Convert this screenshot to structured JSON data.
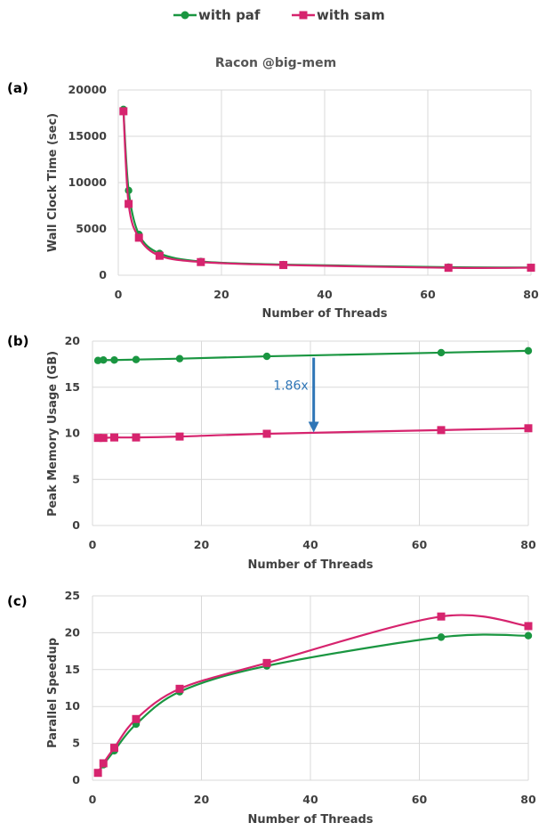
{
  "title": "Racon @big-mem",
  "legend": [
    {
      "label": "with paf",
      "color": "#1a9641",
      "marker": "circle"
    },
    {
      "label": "with sam",
      "color": "#d6246e",
      "marker": "square"
    }
  ],
  "chart_data": [
    {
      "panel": "(a)",
      "type": "line",
      "title": "Racon @big-mem",
      "xlabel": "Number of Threads",
      "ylabel": "Wall Clock Time (sec)",
      "xlim": [
        0,
        80
      ],
      "ylim": [
        0,
        20000
      ],
      "xticks": [
        0,
        20,
        40,
        60,
        80
      ],
      "yticks": [
        0,
        5000,
        10000,
        15000,
        20000
      ],
      "grid": true,
      "legend_position": "top",
      "x": [
        1,
        2,
        4,
        8,
        16,
        32,
        64,
        80
      ],
      "series": [
        {
          "name": "with paf",
          "values": [
            17900,
            9150,
            4400,
            2350,
            1480,
            1150,
            870,
            830
          ]
        },
        {
          "name": "with sam",
          "values": [
            17700,
            7700,
            4050,
            2100,
            1420,
            1100,
            800,
            810
          ]
        }
      ]
    },
    {
      "panel": "(b)",
      "type": "line",
      "xlabel": "Number of Threads",
      "ylabel": "Peak Memory Usage (GB)",
      "xlim": [
        0,
        80
      ],
      "ylim": [
        0,
        20
      ],
      "xticks": [
        0,
        20,
        40,
        60,
        80
      ],
      "yticks": [
        0,
        5,
        10,
        15,
        20
      ],
      "grid": true,
      "annotation": {
        "text": "1.86x",
        "x": 40.6,
        "y_from": 18.2,
        "y_to": 10.1
      },
      "x": [
        1,
        2,
        4,
        8,
        16,
        32,
        64,
        80
      ],
      "series": [
        {
          "name": "with paf",
          "values": [
            17.9,
            17.95,
            17.95,
            18.0,
            18.1,
            18.35,
            18.75,
            18.95
          ]
        },
        {
          "name": "with sam",
          "values": [
            9.5,
            9.5,
            9.55,
            9.55,
            9.65,
            9.95,
            10.35,
            10.55
          ]
        }
      ]
    },
    {
      "panel": "(c)",
      "type": "line",
      "xlabel": "Number of Threads",
      "ylabel": "Parallel Speedup",
      "xlim": [
        0,
        80
      ],
      "ylim": [
        0,
        25
      ],
      "xticks": [
        0,
        20,
        40,
        60,
        80
      ],
      "yticks": [
        0,
        5,
        10,
        15,
        20,
        25
      ],
      "grid": true,
      "x": [
        1,
        2,
        4,
        8,
        16,
        32,
        64,
        80
      ],
      "series": [
        {
          "name": "with paf",
          "values": [
            1.0,
            2.1,
            4.0,
            7.6,
            12.0,
            15.5,
            19.4,
            19.6
          ]
        },
        {
          "name": "with sam",
          "values": [
            1.0,
            2.3,
            4.4,
            8.3,
            12.4,
            15.9,
            22.2,
            20.9
          ]
        }
      ]
    }
  ]
}
